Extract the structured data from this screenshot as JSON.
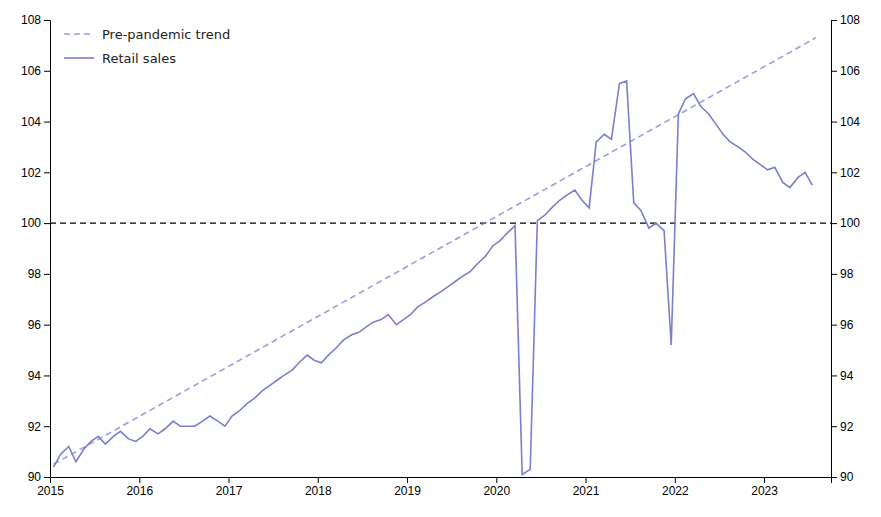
{
  "chart_data": {
    "type": "line",
    "xlim": [
      2015.0,
      2023.75
    ],
    "xticks": [
      2015,
      2016,
      2017,
      2018,
      2019,
      2020,
      2021,
      2022,
      2023
    ],
    "ylim": [
      90,
      108
    ],
    "yticks": [
      90,
      92,
      94,
      96,
      98,
      100,
      102,
      104,
      106,
      108
    ],
    "y2lim": [
      90,
      108
    ],
    "y2ticks": [
      90,
      92,
      94,
      96,
      98,
      100,
      102,
      104,
      106,
      108
    ],
    "grid": false,
    "legend": "upper left",
    "reference_lines": [
      {
        "value": 100,
        "color": "#000000",
        "line_style": "dashed"
      }
    ],
    "series": [
      {
        "name": "Pre-pandemic trend",
        "color": "#7b7fcd",
        "line_style": "dashed",
        "x": [
          2015.04,
          2023.58
        ],
        "values": [
          90.5,
          107.3
        ]
      },
      {
        "name": "Retail sales",
        "color": "#7b7fcd",
        "line_style": "solid",
        "x": [
          2015.04,
          2015.12,
          2015.21,
          2015.29,
          2015.38,
          2015.46,
          2015.54,
          2015.62,
          2015.71,
          2015.79,
          2015.88,
          2015.96,
          2016.04,
          2016.12,
          2016.21,
          2016.29,
          2016.38,
          2016.46,
          2016.54,
          2016.62,
          2016.71,
          2016.79,
          2016.88,
          2016.96,
          2017.04,
          2017.12,
          2017.21,
          2017.29,
          2017.38,
          2017.46,
          2017.54,
          2017.62,
          2017.71,
          2017.79,
          2017.88,
          2017.96,
          2018.04,
          2018.12,
          2018.21,
          2018.29,
          2018.38,
          2018.46,
          2018.54,
          2018.62,
          2018.71,
          2018.79,
          2018.88,
          2018.96,
          2019.04,
          2019.12,
          2019.21,
          2019.29,
          2019.38,
          2019.46,
          2019.54,
          2019.62,
          2019.71,
          2019.79,
          2019.88,
          2019.96,
          2020.04,
          2020.12,
          2020.21,
          2020.29,
          2020.38,
          2020.46,
          2020.54,
          2020.62,
          2020.71,
          2020.79,
          2020.88,
          2020.96,
          2021.04,
          2021.12,
          2021.21,
          2021.29,
          2021.38,
          2021.46,
          2021.54,
          2021.62,
          2021.71,
          2021.79,
          2021.88,
          2021.96,
          2022.04,
          2022.12,
          2022.21,
          2022.29,
          2022.38,
          2022.46,
          2022.54,
          2022.62,
          2022.71,
          2022.79,
          2022.88,
          2022.96,
          2023.04,
          2023.12,
          2023.21,
          2023.29,
          2023.38,
          2023.46,
          2023.54
        ],
        "values": [
          90.4,
          90.9,
          91.2,
          90.6,
          91.1,
          91.4,
          91.6,
          91.3,
          91.6,
          91.8,
          91.5,
          91.4,
          91.6,
          91.9,
          91.7,
          91.9,
          92.2,
          92.0,
          92.0,
          92.0,
          92.2,
          92.4,
          92.2,
          92.0,
          92.4,
          92.6,
          92.9,
          93.1,
          93.4,
          93.6,
          93.8,
          94.0,
          94.2,
          94.5,
          94.8,
          94.6,
          94.5,
          94.8,
          95.1,
          95.4,
          95.6,
          95.7,
          95.9,
          96.1,
          96.2,
          96.4,
          96.0,
          96.2,
          96.4,
          96.7,
          96.9,
          97.1,
          97.3,
          97.5,
          97.7,
          97.9,
          98.1,
          98.4,
          98.7,
          99.1,
          99.3,
          99.6,
          99.9,
          90.1,
          90.3,
          100.1,
          100.3,
          100.6,
          100.9,
          101.1,
          101.3,
          100.9,
          100.6,
          103.2,
          103.5,
          103.3,
          105.5,
          105.6,
          100.8,
          100.5,
          99.8,
          100.0,
          99.7,
          95.2,
          104.3,
          104.9,
          105.1,
          104.6,
          104.3,
          103.9,
          103.5,
          103.2,
          103.0,
          102.8,
          102.5,
          102.3,
          102.1,
          102.2,
          101.6,
          101.4,
          101.8,
          102.0,
          101.5
        ]
      }
    ]
  }
}
